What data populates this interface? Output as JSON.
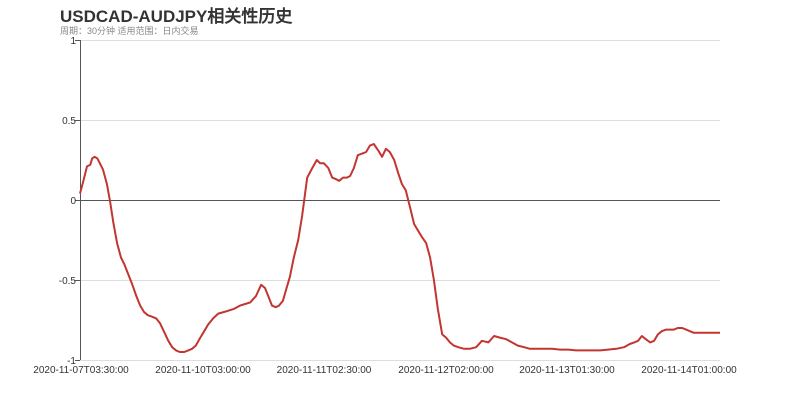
{
  "title": "USDCAD-AUDJPY相关性历史",
  "subtitle": "周期：30分钟 适用范围：日内交易",
  "chart_data": {
    "type": "line",
    "title": "USDCAD-AUDJPY相关性历史",
    "subtitle": "周期：30分钟 适用范围：日内交易",
    "xlabel": "",
    "ylabel": "",
    "ylim": [
      -1,
      1
    ],
    "yticks": [
      "1",
      "0.5",
      "0",
      "-0.5",
      "-1"
    ],
    "xticks": [
      "2020-11-07T03:30:00",
      "2020-11-10T03:00:00",
      "2020-11-11T02:30:00",
      "2020-11-12T02:00:00",
      "2020-11-13T01:30:00",
      "2020-11-14T01:00:00"
    ],
    "grid": true,
    "series_color": "#c23531",
    "series": [
      {
        "name": "correlation",
        "x_frac": [
          0.0,
          0.006,
          0.011,
          0.016,
          0.019,
          0.023,
          0.027,
          0.031,
          0.036,
          0.042,
          0.047,
          0.052,
          0.058,
          0.064,
          0.069,
          0.075,
          0.081,
          0.088,
          0.094,
          0.1,
          0.106,
          0.113,
          0.119,
          0.125,
          0.131,
          0.138,
          0.144,
          0.15,
          0.156,
          0.163,
          0.169,
          0.175,
          0.181,
          0.188,
          0.194,
          0.2,
          0.208,
          0.216,
          0.225,
          0.233,
          0.241,
          0.25,
          0.258,
          0.266,
          0.275,
          0.283,
          0.289,
          0.294,
          0.3,
          0.306,
          0.311,
          0.317,
          0.322,
          0.328,
          0.334,
          0.341,
          0.347,
          0.355,
          0.363,
          0.37,
          0.375,
          0.381,
          0.388,
          0.394,
          0.4,
          0.405,
          0.411,
          0.417,
          0.422,
          0.428,
          0.434,
          0.441,
          0.447,
          0.453,
          0.459,
          0.466,
          0.472,
          0.478,
          0.484,
          0.491,
          0.497,
          0.503,
          0.509,
          0.516,
          0.522,
          0.528,
          0.534,
          0.541,
          0.547,
          0.553,
          0.559,
          0.566,
          0.572,
          0.578,
          0.584,
          0.591,
          0.6,
          0.609,
          0.619,
          0.628,
          0.638,
          0.647,
          0.656,
          0.666,
          0.675,
          0.684,
          0.694,
          0.703,
          0.713,
          0.725,
          0.738,
          0.75,
          0.763,
          0.775,
          0.788,
          0.8,
          0.813,
          0.825,
          0.838,
          0.85,
          0.859,
          0.866,
          0.872,
          0.878,
          0.884,
          0.891,
          0.897,
          0.903,
          0.909,
          0.916,
          0.922,
          0.928,
          0.934,
          0.941,
          0.947,
          0.953,
          0.959,
          0.966,
          0.972,
          0.978,
          0.984,
          0.991,
          1.0
        ],
        "values": [
          0.04,
          0.13,
          0.21,
          0.22,
          0.26,
          0.27,
          0.26,
          0.23,
          0.19,
          0.1,
          -0.01,
          -0.14,
          -0.27,
          -0.36,
          -0.4,
          -0.46,
          -0.52,
          -0.6,
          -0.66,
          -0.7,
          -0.72,
          -0.73,
          -0.74,
          -0.77,
          -0.82,
          -0.88,
          -0.92,
          -0.94,
          -0.95,
          -0.95,
          -0.94,
          -0.93,
          -0.91,
          -0.86,
          -0.82,
          -0.78,
          -0.74,
          -0.71,
          -0.7,
          -0.69,
          -0.68,
          -0.66,
          -0.65,
          -0.64,
          -0.6,
          -0.53,
          -0.55,
          -0.6,
          -0.66,
          -0.67,
          -0.66,
          -0.63,
          -0.56,
          -0.48,
          -0.36,
          -0.25,
          -0.1,
          0.14,
          0.2,
          0.25,
          0.23,
          0.23,
          0.2,
          0.14,
          0.13,
          0.12,
          0.14,
          0.14,
          0.15,
          0.2,
          0.28,
          0.29,
          0.3,
          0.34,
          0.35,
          0.31,
          0.27,
          0.32,
          0.3,
          0.25,
          0.17,
          0.1,
          0.06,
          -0.05,
          -0.15,
          -0.19,
          -0.23,
          -0.27,
          -0.36,
          -0.5,
          -0.68,
          -0.84,
          -0.86,
          -0.89,
          -0.91,
          -0.92,
          -0.93,
          -0.93,
          -0.92,
          -0.88,
          -0.89,
          -0.85,
          -0.86,
          -0.87,
          -0.89,
          -0.91,
          -0.92,
          -0.93,
          -0.93,
          -0.93,
          -0.93,
          -0.935,
          -0.935,
          -0.94,
          -0.94,
          -0.94,
          -0.94,
          -0.935,
          -0.93,
          -0.92,
          -0.9,
          -0.89,
          -0.88,
          -0.85,
          -0.87,
          -0.89,
          -0.88,
          -0.84,
          -0.82,
          -0.81,
          -0.81,
          -0.81,
          -0.8,
          -0.8,
          -0.81,
          -0.82,
          -0.83,
          -0.83,
          -0.83,
          -0.83,
          -0.83,
          -0.83,
          -0.83
        ]
      }
    ]
  }
}
